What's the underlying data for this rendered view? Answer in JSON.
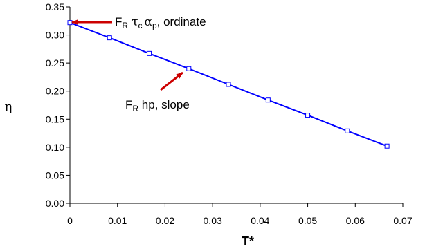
{
  "chart_data": {
    "type": "scatter",
    "title": "",
    "xlabel": "T*",
    "ylabel": "η",
    "xlim": [
      0,
      0.07
    ],
    "ylim": [
      0,
      0.35
    ],
    "x_ticks": [
      "0",
      "0.01",
      "0.02",
      "0.03",
      "0.04",
      "0.05",
      "0.06",
      "0.07"
    ],
    "y_ticks": [
      "0.00",
      "0.05",
      "0.10",
      "0.15",
      "0.20",
      "0.25",
      "0.30",
      "0.35"
    ],
    "grid": false,
    "legend": "none",
    "series": [
      {
        "x": [
          0,
          0.00833,
          0.01667,
          0.025,
          0.03333,
          0.04167,
          0.05,
          0.05833,
          0.06667
        ],
        "y": [
          0.322,
          0.295,
          0.267,
          0.24,
          0.212,
          0.184,
          0.157,
          0.129,
          0.102
        ],
        "color": "#0000ff",
        "marker": "open-square",
        "line": "linear-fit"
      }
    ],
    "annotations": [
      {
        "label": "F_R τ_c α_p, ordinate",
        "points_to": [
          0,
          0.322
        ],
        "arrow_color": "#cc0000"
      },
      {
        "label": "F_R hp, slope",
        "points_to": [
          0.025,
          0.24
        ],
        "arrow_color": "#cc0000"
      }
    ]
  },
  "annotation_text": {
    "a1_F": "F",
    "a1_R": "R",
    "a1_tau": "τ",
    "a1_c": "c",
    "a1_alpha": "α",
    "a1_p": "p",
    "a1_tail": ", ordinate",
    "a2_F": "F",
    "a2_R": "R",
    "a2_tail": " hp, slope"
  }
}
